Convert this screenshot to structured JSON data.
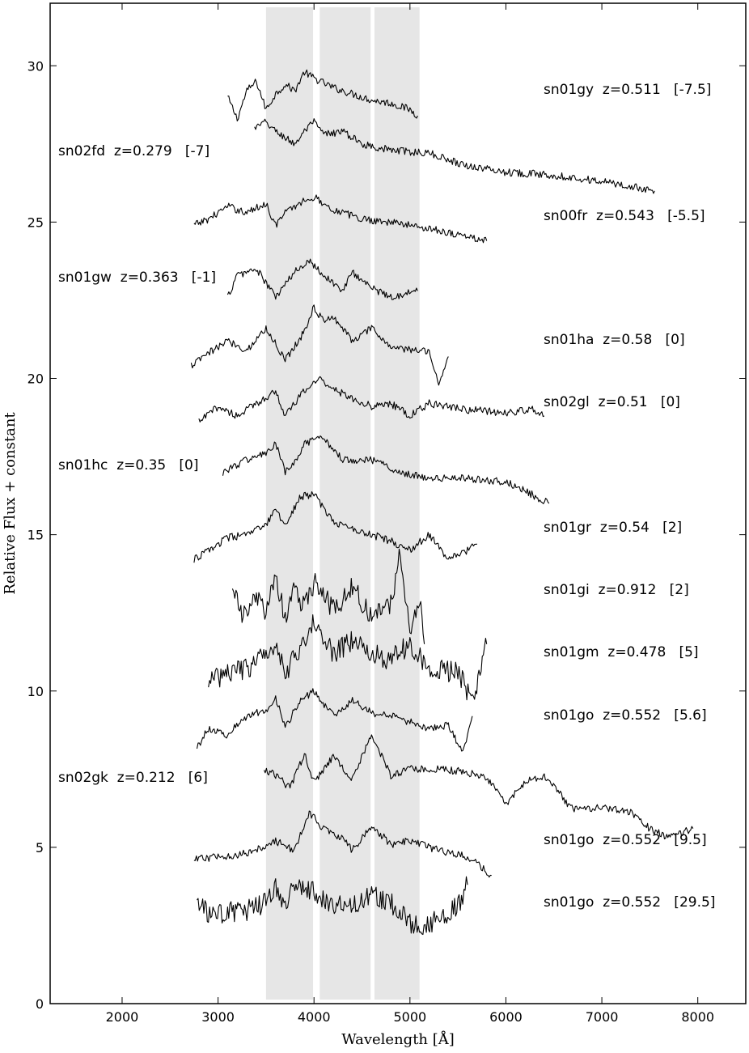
{
  "chart_data": {
    "type": "line",
    "title": "",
    "xlabel": "Wavelength [Å]",
    "ylabel": "Relative Flux + constant",
    "xlim": [
      1250,
      8500
    ],
    "ylim": [
      0,
      32
    ],
    "x_ticks": [
      2000,
      3000,
      4000,
      5000,
      6000,
      7000,
      8000
    ],
    "y_ticks": [
      0,
      5,
      10,
      15,
      20,
      25,
      30
    ],
    "grid": false,
    "shaded_bands": [
      {
        "x_start": 3500,
        "x_end": 3990
      },
      {
        "x_start": 4060,
        "x_end": 4590
      },
      {
        "x_start": 4630,
        "x_end": 5100
      }
    ],
    "series": [
      {
        "label": "sn01gy  z=0.511   [-7.5]",
        "x_start": 3100,
        "x_end": 5080,
        "offset": 29.0,
        "points": [
          [
            3100,
            29.0
          ],
          [
            3200,
            28.3
          ],
          [
            3300,
            29.2
          ],
          [
            3400,
            29.5
          ],
          [
            3500,
            28.6
          ],
          [
            3600,
            29.1
          ],
          [
            3700,
            29.4
          ],
          [
            3800,
            29.2
          ],
          [
            3900,
            29.8
          ],
          [
            4000,
            29.6
          ],
          [
            4200,
            29.3
          ],
          [
            4400,
            29.1
          ],
          [
            4600,
            28.9
          ],
          [
            4800,
            28.8
          ],
          [
            5000,
            28.6
          ],
          [
            5080,
            28.4
          ]
        ]
      },
      {
        "label": "sn02fd  z=0.279   [-7]",
        "x_start": 3380,
        "x_end": 7550,
        "offset": 27.5,
        "points": [
          [
            3380,
            28.0
          ],
          [
            3500,
            28.2
          ],
          [
            3600,
            27.9
          ],
          [
            3800,
            27.5
          ],
          [
            3900,
            27.9
          ],
          [
            4000,
            28.2
          ],
          [
            4100,
            27.8
          ],
          [
            4300,
            27.9
          ],
          [
            4500,
            27.5
          ],
          [
            4800,
            27.3
          ],
          [
            5200,
            27.2
          ],
          [
            5600,
            26.8
          ],
          [
            6000,
            26.6
          ],
          [
            6500,
            26.5
          ],
          [
            7000,
            26.3
          ],
          [
            7550,
            26.0
          ]
        ]
      },
      {
        "label": "sn00fr  z=0.543   [-5.5]",
        "x_start": 2750,
        "x_end": 5800,
        "offset": 25.0,
        "points": [
          [
            2750,
            24.9
          ],
          [
            2900,
            25.1
          ],
          [
            3100,
            25.5
          ],
          [
            3300,
            25.3
          ],
          [
            3500,
            25.6
          ],
          [
            3600,
            24.9
          ],
          [
            3700,
            25.3
          ],
          [
            3900,
            25.7
          ],
          [
            4000,
            25.8
          ],
          [
            4200,
            25.4
          ],
          [
            4500,
            25.1
          ],
          [
            4800,
            25.0
          ],
          [
            5200,
            24.8
          ],
          [
            5500,
            24.6
          ],
          [
            5800,
            24.4
          ]
        ]
      },
      {
        "label": "sn01gw  z=0.363   [-1]",
        "x_start": 3100,
        "x_end": 5080,
        "offset": 23.0,
        "points": [
          [
            3100,
            22.6
          ],
          [
            3200,
            23.3
          ],
          [
            3400,
            23.5
          ],
          [
            3600,
            22.6
          ],
          [
            3800,
            23.4
          ],
          [
            3950,
            23.8
          ],
          [
            4100,
            23.3
          ],
          [
            4300,
            22.8
          ],
          [
            4400,
            23.4
          ],
          [
            4600,
            22.9
          ],
          [
            4800,
            22.6
          ],
          [
            5080,
            22.8
          ]
        ]
      },
      {
        "label": "sn01ha  z=0.58   [0]",
        "x_start": 2720,
        "x_end": 5400,
        "offset": 20.5,
        "points": [
          [
            2720,
            20.4
          ],
          [
            2900,
            20.8
          ],
          [
            3100,
            21.2
          ],
          [
            3300,
            20.9
          ],
          [
            3500,
            21.6
          ],
          [
            3700,
            20.6
          ],
          [
            3900,
            21.5
          ],
          [
            4000,
            22.3
          ],
          [
            4100,
            21.8
          ],
          [
            4200,
            22.0
          ],
          [
            4400,
            21.2
          ],
          [
            4600,
            21.6
          ],
          [
            4800,
            21.0
          ],
          [
            5000,
            20.9
          ],
          [
            5200,
            20.9
          ],
          [
            5300,
            19.8
          ],
          [
            5400,
            20.7
          ]
        ]
      },
      {
        "label": "sn02gl  z=0.51   [0]",
        "x_start": 2800,
        "x_end": 6400,
        "offset": 19.0,
        "points": [
          [
            2800,
            18.6
          ],
          [
            3000,
            19.1
          ],
          [
            3200,
            18.8
          ],
          [
            3400,
            19.2
          ],
          [
            3600,
            19.6
          ],
          [
            3700,
            18.8
          ],
          [
            3900,
            19.6
          ],
          [
            4050,
            20.0
          ],
          [
            4300,
            19.5
          ],
          [
            4600,
            19.1
          ],
          [
            4800,
            19.2
          ],
          [
            5000,
            18.8
          ],
          [
            5200,
            19.2
          ],
          [
            5600,
            19.0
          ],
          [
            6000,
            18.9
          ],
          [
            6300,
            19.0
          ],
          [
            6400,
            18.8
          ]
        ]
      },
      {
        "label": "sn01hc  z=0.35   [0]",
        "x_start": 3050,
        "x_end": 6450,
        "offset": 17.0,
        "points": [
          [
            3050,
            17.0
          ],
          [
            3300,
            17.4
          ],
          [
            3500,
            17.6
          ],
          [
            3600,
            17.9
          ],
          [
            3700,
            17.0
          ],
          [
            3800,
            17.3
          ],
          [
            3900,
            17.9
          ],
          [
            4100,
            18.1
          ],
          [
            4300,
            17.4
          ],
          [
            4600,
            17.4
          ],
          [
            4900,
            17.0
          ],
          [
            5200,
            16.8
          ],
          [
            5600,
            16.8
          ],
          [
            6000,
            16.7
          ],
          [
            6200,
            16.4
          ],
          [
            6450,
            16.0
          ]
        ]
      },
      {
        "label": "sn01gr  z=0.54   [2]",
        "x_start": 2750,
        "x_end": 5700,
        "offset": 14.5,
        "points": [
          [
            2750,
            14.2
          ],
          [
            2900,
            14.5
          ],
          [
            3100,
            14.9
          ],
          [
            3300,
            15.0
          ],
          [
            3500,
            15.3
          ],
          [
            3600,
            15.8
          ],
          [
            3700,
            15.3
          ],
          [
            3850,
            16.2
          ],
          [
            4000,
            16.3
          ],
          [
            4200,
            15.4
          ],
          [
            4400,
            15.2
          ],
          [
            4600,
            15.0
          ],
          [
            4800,
            14.8
          ],
          [
            5000,
            14.5
          ],
          [
            5200,
            15.0
          ],
          [
            5400,
            14.2
          ],
          [
            5600,
            14.5
          ],
          [
            5700,
            14.7
          ]
        ]
      },
      {
        "label": "sn01gi  z=0.912   [2]",
        "x_start": 3150,
        "x_end": 5150,
        "offset": 12.5,
        "points": [
          [
            3150,
            13.5
          ],
          [
            3250,
            12.3
          ],
          [
            3400,
            13.0
          ],
          [
            3500,
            12.5
          ],
          [
            3600,
            13.6
          ],
          [
            3700,
            12.3
          ],
          [
            3800,
            13.4
          ],
          [
            3900,
            12.6
          ],
          [
            4000,
            13.5
          ],
          [
            4200,
            12.6
          ],
          [
            4400,
            13.3
          ],
          [
            4600,
            12.4
          ],
          [
            4800,
            12.8
          ],
          [
            4900,
            14.5
          ],
          [
            5000,
            11.8
          ],
          [
            5100,
            13.0
          ],
          [
            5150,
            11.5
          ]
        ]
      },
      {
        "label": "sn01gm  z=0.478   [5]",
        "x_start": 2900,
        "x_end": 5800,
        "offset": 10.5,
        "points": [
          [
            2900,
            10.3
          ],
          [
            3100,
            10.6
          ],
          [
            3300,
            10.7
          ],
          [
            3500,
            11.2
          ],
          [
            3600,
            11.6
          ],
          [
            3700,
            10.6
          ],
          [
            3900,
            11.6
          ],
          [
            4000,
            12.2
          ],
          [
            4200,
            11.2
          ],
          [
            4400,
            11.6
          ],
          [
            4600,
            11.2
          ],
          [
            4800,
            11.0
          ],
          [
            5000,
            11.5
          ],
          [
            5200,
            10.7
          ],
          [
            5500,
            10.6
          ],
          [
            5650,
            9.7
          ],
          [
            5800,
            11.5
          ]
        ]
      },
      {
        "label": "sn01go  z=0.552   [5.6]",
        "x_start": 2780,
        "x_end": 5650,
        "offset": 8.7,
        "points": [
          [
            2780,
            8.2
          ],
          [
            2900,
            8.8
          ],
          [
            3100,
            8.6
          ],
          [
            3300,
            9.2
          ],
          [
            3500,
            9.4
          ],
          [
            3600,
            9.8
          ],
          [
            3700,
            8.8
          ],
          [
            3850,
            9.7
          ],
          [
            4000,
            10.0
          ],
          [
            4200,
            9.2
          ],
          [
            4400,
            9.7
          ],
          [
            4600,
            9.3
          ],
          [
            4800,
            9.2
          ],
          [
            5000,
            9.0
          ],
          [
            5200,
            8.8
          ],
          [
            5400,
            8.9
          ],
          [
            5550,
            8.0
          ],
          [
            5650,
            9.2
          ]
        ]
      },
      {
        "label": "sn02gk  z=0.212   [6]",
        "x_start": 3480,
        "x_end": 7950,
        "offset": 7.0,
        "points": [
          [
            3480,
            7.5
          ],
          [
            3600,
            7.3
          ],
          [
            3750,
            6.9
          ],
          [
            3900,
            8.0
          ],
          [
            4000,
            7.1
          ],
          [
            4200,
            7.9
          ],
          [
            4400,
            7.2
          ],
          [
            4600,
            8.6
          ],
          [
            4800,
            7.3
          ],
          [
            5000,
            7.5
          ],
          [
            5300,
            7.5
          ],
          [
            5600,
            7.4
          ],
          [
            5800,
            7.2
          ],
          [
            6000,
            6.4
          ],
          [
            6200,
            7.1
          ],
          [
            6400,
            7.3
          ],
          [
            6700,
            6.2
          ],
          [
            7000,
            6.3
          ],
          [
            7300,
            6.1
          ],
          [
            7500,
            5.6
          ],
          [
            7700,
            5.3
          ],
          [
            7950,
            5.6
          ]
        ]
      },
      {
        "label": "sn01go  z=0.552   [9.5]",
        "x_start": 2750,
        "x_end": 5850,
        "offset": 5.0,
        "points": [
          [
            2750,
            4.6
          ],
          [
            3000,
            4.7
          ],
          [
            3300,
            4.8
          ],
          [
            3600,
            5.2
          ],
          [
            3800,
            4.9
          ],
          [
            3950,
            6.1
          ],
          [
            4100,
            5.6
          ],
          [
            4300,
            5.3
          ],
          [
            4400,
            4.9
          ],
          [
            4600,
            5.7
          ],
          [
            4800,
            5.1
          ],
          [
            5000,
            5.2
          ],
          [
            5300,
            4.9
          ],
          [
            5600,
            4.7
          ],
          [
            5850,
            4.1
          ]
        ]
      },
      {
        "label": "sn01go  z=0.552   [29.5]",
        "x_start": 2780,
        "x_end": 5600,
        "offset": 3.0,
        "points": [
          [
            2780,
            3.3
          ],
          [
            2900,
            2.8
          ],
          [
            3100,
            2.9
          ],
          [
            3300,
            3.0
          ],
          [
            3500,
            3.2
          ],
          [
            3600,
            3.7
          ],
          [
            3700,
            3.0
          ],
          [
            3800,
            3.9
          ],
          [
            4000,
            3.6
          ],
          [
            4200,
            3.2
          ],
          [
            4400,
            3.1
          ],
          [
            4600,
            3.5
          ],
          [
            4800,
            3.2
          ],
          [
            5000,
            2.6
          ],
          [
            5100,
            2.4
          ],
          [
            5300,
            2.7
          ],
          [
            5500,
            3.1
          ],
          [
            5600,
            3.8
          ]
        ]
      }
    ]
  }
}
